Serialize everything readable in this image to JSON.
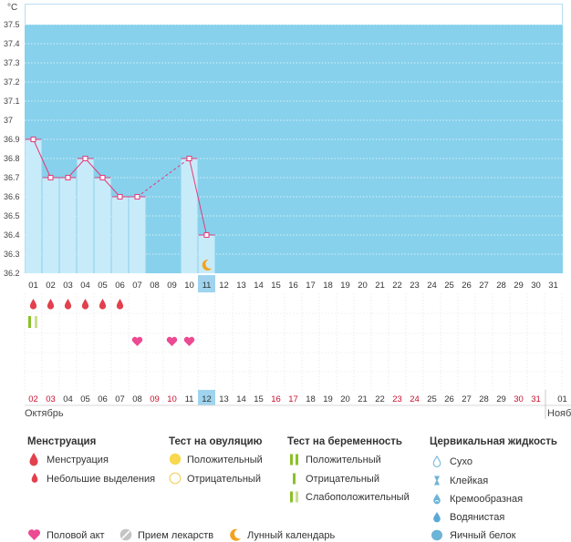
{
  "chart_data": {
    "type": "line",
    "y_unit": "°C",
    "y_ticks": [
      "36.2",
      "36.3",
      "36.4",
      "36.5",
      "36.6",
      "36.7",
      "36.8",
      "36.9",
      "37",
      "37.1",
      "37.2",
      "37.3",
      "37.4",
      "37.5"
    ],
    "ylim": [
      36.2,
      37.5
    ],
    "day_labels_top": [
      "01",
      "02",
      "03",
      "04",
      "05",
      "06",
      "07",
      "08",
      "09",
      "10",
      "11",
      "12",
      "13",
      "14",
      "15",
      "16",
      "17",
      "18",
      "19",
      "20",
      "21",
      "22",
      "23",
      "24",
      "25",
      "26",
      "27",
      "28",
      "29",
      "30",
      "31"
    ],
    "temperatures": [
      {
        "day": 1,
        "value": 36.9
      },
      {
        "day": 2,
        "value": 36.7
      },
      {
        "day": 3,
        "value": 36.7
      },
      {
        "day": 4,
        "value": 36.8
      },
      {
        "day": 5,
        "value": 36.7
      },
      {
        "day": 6,
        "value": 36.6
      },
      {
        "day": 7,
        "value": 36.6
      },
      {
        "day": 10,
        "value": 36.8
      },
      {
        "day": 11,
        "value": 36.4
      }
    ],
    "dashed_segments": [
      [
        7,
        10
      ]
    ],
    "highlight_day": 11,
    "moon_day": 11,
    "menstruation_days": [
      1,
      2,
      3,
      4,
      5,
      6
    ],
    "pregnancy_test_days": [
      1
    ],
    "intercourse_days": [
      7,
      9,
      10
    ],
    "bottom_day_labels": [
      "02",
      "03",
      "04",
      "05",
      "06",
      "07",
      "08",
      "09",
      "10",
      "11",
      "12",
      "13",
      "14",
      "15",
      "16",
      "17",
      "18",
      "19",
      "20",
      "21",
      "22",
      "23",
      "24",
      "25",
      "26",
      "27",
      "28",
      "29",
      "30",
      "31",
      "01"
    ],
    "bottom_red_labels": [
      "02",
      "03",
      "09",
      "10",
      "16",
      "17",
      "23",
      "24",
      "30",
      "31"
    ],
    "bottom_highlight_label": "12",
    "month_current": "Октябрь",
    "month_next": "Ноябрь"
  },
  "colors": {
    "sky": "#87d1ec",
    "bar_fill": "#c8ebfa",
    "line": "#e23b7a",
    "drop": "#e2404c",
    "heart": "#ec4a92",
    "green": "#8ac128",
    "green_light": "#c8e08e",
    "moon": "#f4a21e",
    "highlight": "#a0d4ee",
    "red_label": "#c8102e",
    "yellow": "#f8d84c"
  },
  "legend": {
    "menstruation": {
      "title": "Менструация",
      "items": [
        "Менструация",
        "Небольшие выделения"
      ]
    },
    "ovulation": {
      "title": "Тест на овуляцию",
      "items": [
        "Положительный",
        "Отрицательный"
      ]
    },
    "pregnancy": {
      "title": "Тест на беременность",
      "items": [
        "Положительный",
        "Отрицательный",
        "Слабоположительный"
      ]
    },
    "cervical": {
      "title": "Цервикальная жидкость",
      "items": [
        "Сухо",
        "Клейкая",
        "Кремообразная",
        "Водянистая",
        "Яичный белок"
      ]
    },
    "bottom": [
      "Половой акт",
      "Прием лекарств",
      "Лунный календарь"
    ]
  }
}
